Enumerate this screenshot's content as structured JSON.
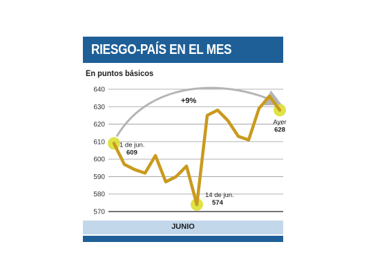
{
  "header": {
    "title": "RIESGO-PAÍS EN EL MES"
  },
  "chart_data": {
    "type": "line",
    "title": "RIESGO-PAÍS EN EL MES",
    "subtitle": "En puntos básicos",
    "xlabel": "JUNIO",
    "ylabel": "",
    "ylim": [
      570,
      640
    ],
    "yticks": [
      570,
      580,
      590,
      600,
      610,
      620,
      630,
      640
    ],
    "grid": true,
    "series": [
      {
        "values": [
          609,
          597,
          594,
          592,
          602,
          587,
          590,
          596,
          574,
          625,
          628,
          622,
          613,
          611,
          629,
          636,
          628
        ]
      }
    ],
    "line_color": "#c99a1d",
    "highlight_color": "#d8de26",
    "highlights": [
      {
        "index": 0,
        "label": "1 de jun.",
        "value": "609"
      },
      {
        "index": 8,
        "label": "14 de jun.",
        "value": "574"
      },
      {
        "index": 16,
        "label": "Ayer",
        "value": "628"
      }
    ],
    "change_annotation": "+9%"
  }
}
